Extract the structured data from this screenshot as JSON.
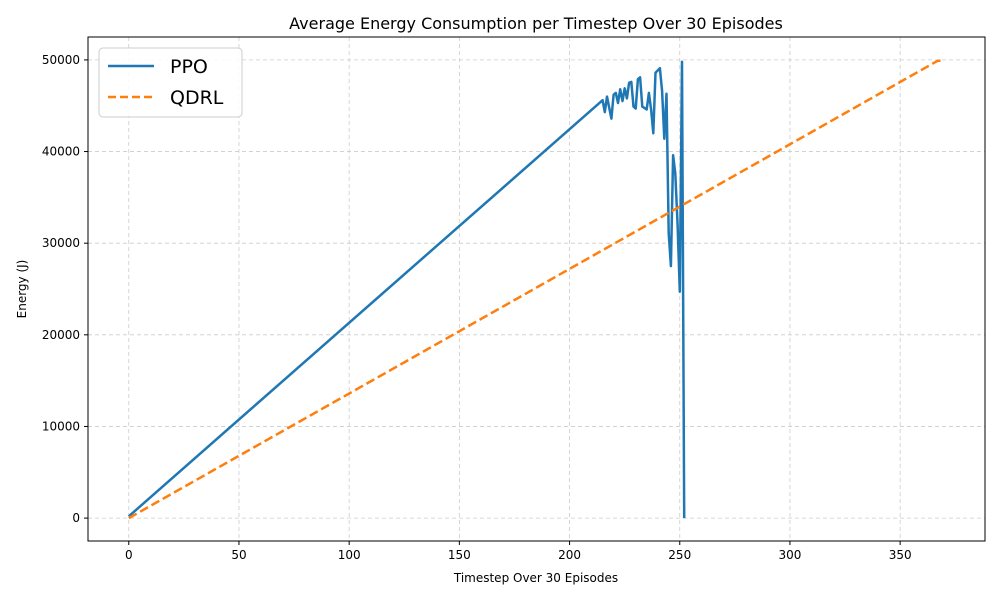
{
  "chart_data": {
    "type": "line",
    "title": "Average Energy Consumption per Timestep Over 30 Episodes",
    "xlabel": "Timestep Over 30 Episodes",
    "ylabel": "Energy (J)",
    "xlim": [
      -18.5,
      388.5
    ],
    "ylim": [
      -2500,
      52500
    ],
    "xticks": [
      0,
      50,
      100,
      150,
      200,
      250,
      300,
      350
    ],
    "yticks": [
      0,
      10000,
      20000,
      30000,
      40000,
      50000
    ],
    "grid": true,
    "legend_position": "top-left",
    "series": [
      {
        "name": "PPO",
        "color": "#1f77b4",
        "dash": "solid",
        "points": [
          [
            0,
            200
          ],
          [
            215,
            45600
          ],
          [
            216,
            44300
          ],
          [
            217,
            46000
          ],
          [
            219,
            43600
          ],
          [
            220,
            46200
          ],
          [
            221,
            46400
          ],
          [
            222,
            45300
          ],
          [
            223,
            46800
          ],
          [
            224,
            45500
          ],
          [
            225,
            46900
          ],
          [
            226,
            45800
          ],
          [
            227,
            47500
          ],
          [
            228,
            47600
          ],
          [
            229,
            44900
          ],
          [
            230,
            44700
          ],
          [
            231,
            47900
          ],
          [
            232,
            48100
          ],
          [
            233,
            44900
          ],
          [
            235,
            44600
          ],
          [
            236,
            46400
          ],
          [
            237,
            44600
          ],
          [
            238,
            42000
          ],
          [
            239,
            48600
          ],
          [
            241,
            49100
          ],
          [
            242,
            46600
          ],
          [
            243,
            41400
          ],
          [
            244,
            46300
          ],
          [
            245,
            31100
          ],
          [
            246,
            27500
          ],
          [
            247,
            39600
          ],
          [
            248,
            37600
          ],
          [
            249,
            32000
          ],
          [
            250,
            24700
          ],
          [
            251,
            49800
          ],
          [
            252,
            0
          ]
        ]
      },
      {
        "name": "QDRL",
        "color": "#ff7f0e",
        "dash": "dashed",
        "points": [
          [
            0,
            0
          ],
          [
            367,
            49900
          ],
          [
            370,
            49900
          ]
        ]
      }
    ]
  }
}
